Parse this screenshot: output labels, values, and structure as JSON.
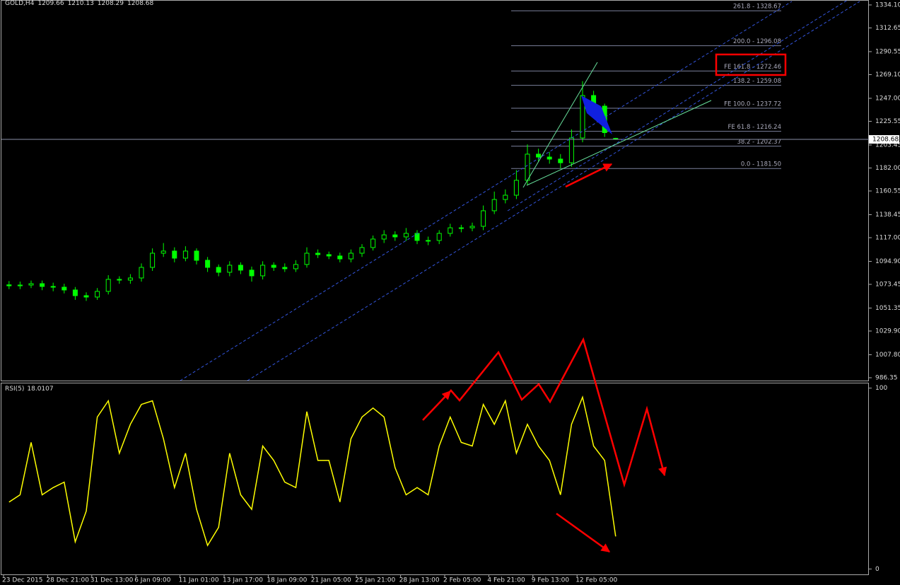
{
  "chart_data": [
    {
      "type": "candlestick",
      "title": "GOLD,H4",
      "color": "#00ff00",
      "categories": [
        "23 Dec 2015",
        null,
        null,
        null,
        "28 Dec 21:00",
        null,
        null,
        null,
        "31 Dec 13:00",
        null,
        null,
        null,
        "6 Jan 09:00",
        null,
        null,
        null,
        "11 Jan 01:00",
        null,
        null,
        null,
        "13 Jan 17:00",
        null,
        null,
        null,
        "18 Jan 09:00",
        null,
        null,
        null,
        "21 Jan 05:00",
        null,
        null,
        null,
        "25 Jan 21:00",
        null,
        null,
        null,
        "28 Jan 13:00",
        null,
        null,
        null,
        "2 Feb 05:00",
        null,
        null,
        null,
        "4 Feb 21:00",
        null,
        null,
        null,
        "9 Feb 13:00",
        null,
        null,
        null,
        "12 Feb 05:00",
        null,
        null,
        null
      ],
      "open": [
        1073.0,
        1072.1,
        1072.8,
        1074.1,
        1071.5,
        1070.8,
        1068.2,
        1062.9,
        1061.6,
        1066.9,
        1078.1,
        1077.4,
        1079.4,
        1089.3,
        1102.5,
        1104.5,
        1097.9,
        1104.5,
        1095.9,
        1089.3,
        1084.7,
        1091.3,
        1086.7,
        1081.4,
        1091.3,
        1089.3,
        1088.0,
        1092.0,
        1102.5,
        1101.2,
        1099.9,
        1097.2,
        1102.5,
        1107.8,
        1115.7,
        1119.6,
        1117.7,
        1121.0,
        1114.4,
        1114.4,
        1121.0,
        1126.2,
        1126.2,
        1127.6,
        1142.1,
        1152.6,
        1156.6,
        1170.5,
        1194.9,
        1192.2,
        1190.3,
        1186.9,
        1210.0,
        1249.6,
        1239.7,
        1209.66
      ],
      "high": [
        1076.5,
        1076,
        1077,
        1077,
        1075,
        1074,
        1071,
        1066,
        1070,
        1082,
        1081,
        1083,
        1093,
        1107,
        1112,
        1108,
        1109,
        1107,
        1099,
        1092,
        1095,
        1094,
        1090,
        1095,
        1094,
        1093,
        1096,
        1108,
        1106,
        1104,
        1103,
        1106,
        1111,
        1119,
        1124,
        1123,
        1126,
        1124,
        1118,
        1124,
        1130,
        1129,
        1131,
        1147,
        1160,
        1162,
        1180,
        1204,
        1200,
        1197,
        1195,
        1218,
        1263,
        1254,
        1242,
        1210.13
      ],
      "low": [
        1069,
        1069,
        1070,
        1068,
        1067,
        1065,
        1059,
        1058,
        1059,
        1064,
        1074,
        1074,
        1076,
        1086,
        1099,
        1094,
        1095,
        1092,
        1085,
        1081,
        1081,
        1083,
        1076,
        1078,
        1086,
        1085,
        1085,
        1089,
        1098,
        1097,
        1094,
        1094,
        1099,
        1105,
        1112,
        1114,
        1114,
        1111,
        1110,
        1111,
        1118,
        1122,
        1123,
        1124,
        1139,
        1149,
        1153,
        1166,
        1188,
        1186,
        1181.5,
        1183,
        1206,
        1235,
        1211,
        1208.29
      ],
      "close": [
        1072.1,
        1072.8,
        1074.1,
        1071.5,
        1070.8,
        1068.2,
        1062.9,
        1061.6,
        1066.9,
        1078.1,
        1077.4,
        1079.4,
        1089.3,
        1102.5,
        1104.5,
        1097.9,
        1104.5,
        1095.9,
        1089.3,
        1084.7,
        1091.3,
        1086.7,
        1081.4,
        1091.3,
        1089.3,
        1088.0,
        1092.0,
        1102.5,
        1101.2,
        1099.9,
        1097.2,
        1102.5,
        1107.8,
        1115.7,
        1119.6,
        1117.7,
        1121.0,
        1114.4,
        1114.4,
        1121.0,
        1126.2,
        1126.2,
        1127.6,
        1142.1,
        1152.6,
        1156.6,
        1170.5,
        1194.9,
        1192.2,
        1190.3,
        1186.9,
        1210.0,
        1249.6,
        1239.7,
        1215.0,
        1208.68
      ],
      "ylim": [
        983.7,
        1338.7
      ],
      "yticks": [
        {
          "value": 1334.1,
          "label": "1334.10"
        },
        {
          "value": 1312.65,
          "label": "1312.65"
        },
        {
          "value": 1290.55,
          "label": "1290.55"
        },
        {
          "value": 1269.1,
          "label": "1269.10"
        },
        {
          "value": 1247,
          "label": "1247.00"
        },
        {
          "value": 1225.55,
          "label": "1225.55"
        },
        {
          "value": 1203.45,
          "label": "1203.45"
        },
        {
          "value": 1182,
          "label": "1182.00"
        },
        {
          "value": 1160.55,
          "label": "1160.55"
        },
        {
          "value": 1138.45,
          "label": "1138.45"
        },
        {
          "value": 1117,
          "label": "1117.00"
        },
        {
          "value": 1094.9,
          "label": "1094.90"
        },
        {
          "value": 1073.45,
          "label": "1073.45"
        },
        {
          "value": 1051.35,
          "label": "1051.35"
        },
        {
          "value": 1029.9,
          "label": "1029.90"
        },
        {
          "value": 1007.8,
          "label": "1007.80"
        },
        {
          "value": 986.35,
          "label": "986.35"
        }
      ],
      "fibo_levels": [
        {
          "value": 1328.67,
          "label": "261.8 - 1328.67"
        },
        {
          "value": 1296.08,
          "label": "200.0 - 1296.08"
        },
        {
          "value": 1272.46,
          "label": "FE 161.8 - 1272.46"
        },
        {
          "value": 1259.08,
          "label": "138.2 - 1259.08"
        },
        {
          "value": 1237.72,
          "label": "FE 100.0 - 1237.72"
        },
        {
          "value": 1216.24,
          "label": "FE 61.8 - 1216.24"
        },
        {
          "value": 1202.37,
          "label": "38.2 - 1202.37"
        },
        {
          "value": 1181.5,
          "label": "0.0 - 1181.50"
        }
      ]
    },
    {
      "type": "line",
      "series": [
        {
          "name": "RSI(5)",
          "color": "#ffff00",
          "values": [
            37,
            41,
            70,
            41,
            45,
            48,
            15,
            32,
            84,
            93,
            64,
            80,
            91,
            93,
            72,
            45,
            64,
            33,
            13,
            23,
            64,
            41,
            33,
            68,
            60,
            48,
            45,
            87,
            60,
            60,
            37,
            72,
            84,
            89,
            84,
            56,
            41,
            45,
            41,
            68,
            84,
            70,
            68,
            91,
            80,
            93,
            64,
            80,
            68,
            60,
            41,
            80,
            95,
            68,
            60,
            18.0107
          ]
        }
      ],
      "ylim": [
        -3,
        103
      ],
      "yticks": [
        0,
        100
      ]
    }
  ]
}
